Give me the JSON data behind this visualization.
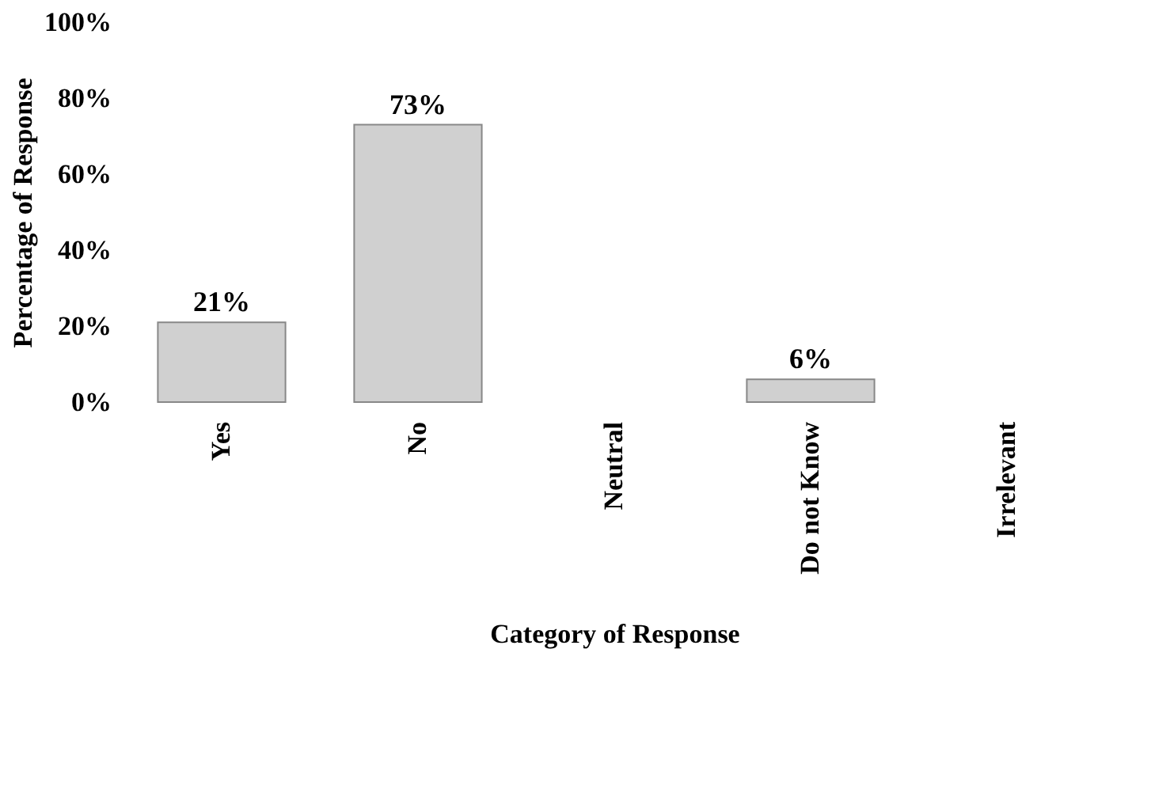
{
  "chart_data": {
    "type": "bar",
    "xlabel": "Category of Response",
    "ylabel": "Percentage of Response",
    "categories": [
      "Yes",
      "No",
      "Neutral",
      "Do not Know",
      "Irrelevant"
    ],
    "values": [
      21,
      73,
      null,
      6,
      null
    ],
    "value_labels": [
      "21%",
      "73%",
      null,
      "6%",
      null
    ],
    "color": "#d0d0d0",
    "ylim": [
      0,
      100
    ],
    "yticks": [
      {
        "value": 0,
        "label": "0%"
      },
      {
        "value": 20,
        "label": "20%"
      },
      {
        "value": 40,
        "label": "40%"
      },
      {
        "value": 60,
        "label": "60%"
      },
      {
        "value": 80,
        "label": "80%"
      },
      {
        "value": 100,
        "label": "100%"
      }
    ],
    "grid": false
  }
}
